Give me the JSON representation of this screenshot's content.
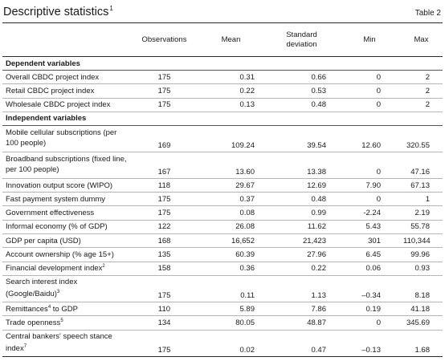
{
  "header": {
    "title": "Descriptive statistics",
    "title_note": "1",
    "table_label": "Table 2"
  },
  "columns": [
    "",
    "Observations",
    "Mean",
    "Standard deviation",
    "Min",
    "Max"
  ],
  "sections": [
    {
      "title": "Dependent variables",
      "rows": [
        {
          "label": "Overall CBDC project index",
          "note": "",
          "cells": [
            "175",
            "0.31",
            "0.66",
            "0",
            "2"
          ]
        },
        {
          "label": "Retail CBDC project index",
          "note": "",
          "cells": [
            "175",
            "0.22",
            "0.53",
            "0",
            "2"
          ]
        },
        {
          "label": "Wholesale CBDC project index",
          "note": "",
          "cells": [
            "175",
            "0.13",
            "0.48",
            "0",
            "2"
          ]
        }
      ]
    },
    {
      "title": "Independent variables",
      "rows": [
        {
          "label": "Mobile cellular subscriptions (per 100 people)",
          "note": "",
          "cells": [
            "169",
            "109.24",
            "39.54",
            "12.60",
            "320.55"
          ]
        },
        {
          "label": "Broadband subscriptions (fixed line, per 100 people)",
          "note": "",
          "cells": [
            "167",
            "13.60",
            "13.38",
            "0",
            "47.16"
          ]
        },
        {
          "label": "Innovation output score (WIPO)",
          "note": "",
          "cells": [
            "118",
            "29.67",
            "12.69",
            "7.90",
            "67.13"
          ]
        },
        {
          "label": "Fast payment system dummy",
          "note": "",
          "cells": [
            "175",
            "0.37",
            "0.48",
            "0",
            "1"
          ]
        },
        {
          "label": "Government effectiveness",
          "note": "",
          "cells": [
            "175",
            "0.08",
            "0.99",
            "-2.24",
            "2.19"
          ]
        },
        {
          "label": "Informal economy (% of GDP)",
          "note": "",
          "cells": [
            "122",
            "26.08",
            "11.62",
            "5.43",
            "55.78"
          ]
        },
        {
          "label": "GDP per capita (USD)",
          "note": "",
          "cells": [
            "168",
            "16,652",
            "21,423",
            "301",
            "110,344"
          ]
        },
        {
          "label": "Account ownership (% age 15+)",
          "note": "",
          "cells": [
            "135",
            "60.39",
            "27.96",
            "6.45",
            "99.96"
          ]
        },
        {
          "label": "Financial development index",
          "note": "2",
          "cells": [
            "158",
            "0.36",
            "0.22",
            "0.06",
            "0.93"
          ]
        },
        {
          "label": "Search interest index (Google/Baidu)",
          "note": "3",
          "cells": [
            "175",
            "0.11",
            "1.13",
            "–0.34",
            "8.18"
          ]
        },
        {
          "label": "Remittances",
          "note": "4",
          "suffix": " to GDP",
          "cells": [
            "110",
            "5.89",
            "7.86",
            "0.19",
            "41.18"
          ]
        },
        {
          "label": "Trade openness",
          "note": "5",
          "cells": [
            "134",
            "80.05",
            "48.87",
            "0",
            "345.69"
          ]
        },
        {
          "label": "Central bankers' speech stance index",
          "note": "7",
          "cells": [
            "175",
            "0.02",
            "0.47",
            "–0.13",
            "1.68"
          ]
        }
      ]
    }
  ]
}
